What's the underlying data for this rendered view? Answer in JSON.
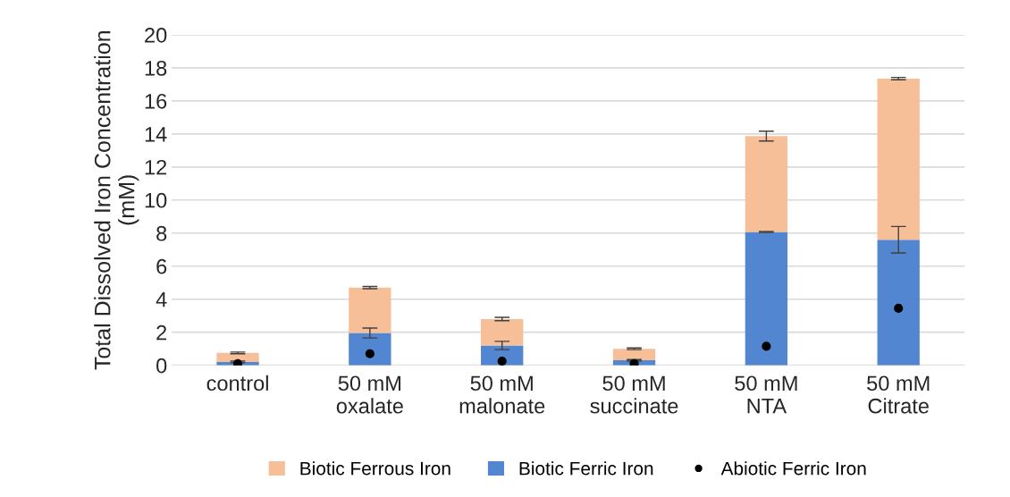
{
  "chart_data": {
    "type": "bar",
    "stacked": true,
    "ylabel": "Total Dissolved Iron Concentration\n(mM)",
    "categories": [
      "control",
      "50 mM\noxalate",
      "50 mM\nmalonate",
      "50 mM\nsuccinate",
      "50 mM\nNTA",
      "50 mM\nCitrate"
    ],
    "series": [
      {
        "name": "Biotic Ferric Iron",
        "color": "#5386d0",
        "values": [
          0.2,
          1.95,
          1.2,
          0.3,
          8.07,
          7.6
        ],
        "errors": [
          0.05,
          0.3,
          0.25,
          0.05,
          0.03,
          0.8
        ]
      },
      {
        "name": "Biotic Ferrous Iron",
        "color": "#f7bf97",
        "values": [
          0.55,
          2.75,
          1.6,
          0.7,
          5.8,
          9.75
        ],
        "errors": [
          0.05,
          0.07,
          0.1,
          0.05,
          0.3,
          0.07
        ]
      },
      {
        "name": "Abiotic Ferric Iron",
        "type": "scatter",
        "color": "#000000",
        "marker": "circle",
        "values": [
          0.1,
          0.7,
          0.25,
          0.1,
          1.15,
          3.45
        ]
      }
    ],
    "ylim": [
      0,
      20
    ],
    "yticks": [
      0,
      2,
      4,
      6,
      8,
      10,
      12,
      14,
      16,
      18,
      20
    ],
    "grid": "y",
    "legend": "bottom"
  }
}
